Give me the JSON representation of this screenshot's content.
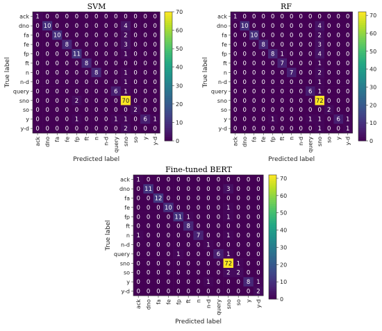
{
  "chart_data": [
    {
      "type": "heatmap",
      "title": "SVM",
      "xlabel": "Predicted label",
      "ylabel": "True label",
      "labels": [
        "ack",
        "dno",
        "fa",
        "fe",
        "fp",
        "ft",
        "n",
        "n-d",
        "query",
        "sno",
        "so",
        "y",
        "y-d"
      ],
      "colorbar": {
        "range": [
          0,
          70
        ],
        "ticks": [
          0,
          10,
          20,
          30,
          40,
          50,
          60,
          70
        ]
      },
      "matrix": [
        [
          1,
          0,
          0,
          0,
          0,
          0,
          0,
          0,
          0,
          0,
          0,
          0,
          0
        ],
        [
          0,
          10,
          0,
          0,
          0,
          0,
          0,
          0,
          0,
          4,
          0,
          0,
          0
        ],
        [
          0,
          0,
          10,
          0,
          0,
          0,
          0,
          0,
          0,
          2,
          0,
          0,
          0
        ],
        [
          0,
          0,
          0,
          8,
          0,
          0,
          0,
          0,
          0,
          3,
          0,
          0,
          0
        ],
        [
          0,
          0,
          0,
          0,
          11,
          0,
          0,
          0,
          0,
          1,
          0,
          0,
          0
        ],
        [
          0,
          0,
          0,
          0,
          0,
          8,
          0,
          0,
          0,
          0,
          0,
          0,
          0
        ],
        [
          0,
          0,
          0,
          0,
          0,
          0,
          8,
          0,
          0,
          1,
          0,
          0,
          0
        ],
        [
          0,
          0,
          0,
          0,
          0,
          0,
          0,
          0,
          0,
          1,
          0,
          0,
          0
        ],
        [
          0,
          0,
          0,
          0,
          0,
          0,
          0,
          0,
          6,
          1,
          0,
          0,
          0
        ],
        [
          0,
          0,
          0,
          0,
          2,
          0,
          0,
          0,
          0,
          70,
          0,
          0,
          0
        ],
        [
          0,
          0,
          0,
          0,
          0,
          0,
          0,
          0,
          0,
          0,
          2,
          0,
          0
        ],
        [
          0,
          0,
          0,
          0,
          1,
          0,
          0,
          0,
          1,
          1,
          0,
          6,
          1
        ],
        [
          0,
          0,
          0,
          0,
          0,
          0,
          0,
          0,
          0,
          2,
          0,
          0,
          0
        ]
      ]
    },
    {
      "type": "heatmap",
      "title": "RF",
      "xlabel": "Predicted label",
      "ylabel": "True label",
      "labels": [
        "ack",
        "dno",
        "fa",
        "fe",
        "fp",
        "ft",
        "n",
        "n-d",
        "query",
        "sno",
        "so",
        "y",
        "y-d"
      ],
      "colorbar": {
        "range": [
          0,
          72
        ],
        "ticks": [
          0,
          10,
          20,
          30,
          40,
          50,
          60,
          70
        ]
      },
      "matrix": [
        [
          1,
          0,
          0,
          0,
          0,
          0,
          0,
          0,
          0,
          0,
          0,
          0,
          0
        ],
        [
          0,
          10,
          0,
          0,
          0,
          0,
          0,
          0,
          0,
          4,
          0,
          0,
          0
        ],
        [
          0,
          0,
          10,
          0,
          0,
          0,
          0,
          0,
          0,
          2,
          0,
          0,
          0
        ],
        [
          0,
          0,
          0,
          8,
          0,
          0,
          0,
          0,
          0,
          3,
          0,
          0,
          0
        ],
        [
          0,
          0,
          0,
          0,
          8,
          1,
          0,
          0,
          0,
          4,
          0,
          0,
          0
        ],
        [
          0,
          0,
          0,
          0,
          0,
          7,
          0,
          0,
          0,
          1,
          0,
          0,
          0
        ],
        [
          0,
          0,
          0,
          0,
          0,
          0,
          7,
          0,
          0,
          2,
          0,
          0,
          0
        ],
        [
          0,
          0,
          0,
          0,
          0,
          0,
          0,
          0,
          0,
          1,
          0,
          0,
          0
        ],
        [
          0,
          0,
          0,
          0,
          0,
          0,
          0,
          0,
          6,
          1,
          0,
          0,
          0
        ],
        [
          0,
          0,
          0,
          0,
          0,
          0,
          0,
          0,
          0,
          72,
          0,
          0,
          0
        ],
        [
          0,
          0,
          0,
          0,
          0,
          0,
          0,
          0,
          0,
          0,
          2,
          0,
          0
        ],
        [
          0,
          0,
          0,
          0,
          1,
          0,
          0,
          0,
          1,
          1,
          0,
          6,
          1
        ],
        [
          0,
          0,
          0,
          0,
          0,
          0,
          0,
          0,
          0,
          1,
          0,
          0,
          1
        ]
      ]
    },
    {
      "type": "heatmap",
      "title": "Fine-tuned BERT",
      "xlabel": "Predicted label",
      "ylabel": "True label",
      "labels": [
        "ack",
        "dno",
        "fa",
        "fe",
        "fp",
        "ft",
        "n",
        "n-d",
        "query",
        "sno",
        "so",
        "y",
        "y-d"
      ],
      "colorbar": {
        "range": [
          0,
          72
        ],
        "ticks": [
          0,
          10,
          20,
          30,
          40,
          50,
          60,
          70
        ]
      },
      "matrix": [
        [
          1,
          0,
          0,
          0,
          0,
          0,
          0,
          0,
          0,
          0,
          0,
          0,
          0
        ],
        [
          0,
          11,
          0,
          0,
          0,
          0,
          0,
          0,
          0,
          3,
          0,
          0,
          0
        ],
        [
          0,
          0,
          12,
          0,
          0,
          0,
          0,
          0,
          0,
          0,
          0,
          0,
          0
        ],
        [
          0,
          0,
          0,
          10,
          0,
          0,
          0,
          0,
          0,
          1,
          0,
          0,
          0
        ],
        [
          0,
          0,
          0,
          0,
          11,
          1,
          0,
          0,
          0,
          1,
          0,
          0,
          0
        ],
        [
          0,
          0,
          0,
          0,
          0,
          8,
          0,
          0,
          0,
          0,
          0,
          0,
          0
        ],
        [
          1,
          0,
          0,
          0,
          0,
          0,
          7,
          0,
          0,
          1,
          0,
          0,
          0
        ],
        [
          0,
          0,
          0,
          0,
          0,
          0,
          0,
          1,
          0,
          0,
          0,
          0,
          0
        ],
        [
          0,
          0,
          0,
          0,
          1,
          0,
          0,
          0,
          6,
          1,
          0,
          0,
          0
        ],
        [
          0,
          0,
          0,
          0,
          0,
          0,
          0,
          0,
          0,
          72,
          1,
          0,
          0
        ],
        [
          0,
          0,
          0,
          0,
          0,
          0,
          0,
          0,
          0,
          2,
          2,
          0,
          0
        ],
        [
          0,
          0,
          0,
          0,
          0,
          0,
          0,
          1,
          0,
          0,
          0,
          8,
          1
        ],
        [
          0,
          0,
          0,
          0,
          0,
          0,
          0,
          0,
          0,
          0,
          0,
          0,
          2
        ]
      ]
    }
  ]
}
